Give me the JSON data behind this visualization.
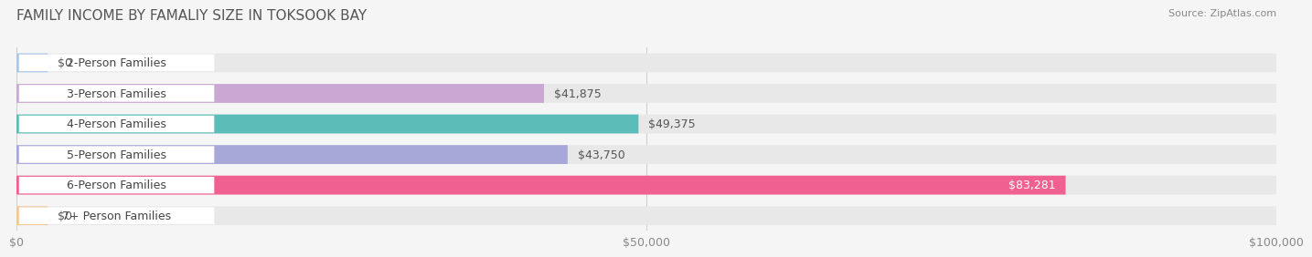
{
  "title": "FAMILY INCOME BY FAMALIY SIZE IN TOKSOOK BAY",
  "source": "Source: ZipAtlas.com",
  "categories": [
    "2-Person Families",
    "3-Person Families",
    "4-Person Families",
    "5-Person Families",
    "6-Person Families",
    "7+ Person Families"
  ],
  "values": [
    0,
    41875,
    49375,
    43750,
    83281,
    0
  ],
  "bar_colors": [
    "#a8c8e8",
    "#c9a8d4",
    "#5bbcb8",
    "#a8a8d8",
    "#f06090",
    "#f0c898"
  ],
  "value_labels": [
    "$0",
    "$41,875",
    "$49,375",
    "$43,750",
    "$83,281",
    "$0"
  ],
  "xlim": [
    0,
    100000
  ],
  "xticks": [
    0,
    50000,
    100000
  ],
  "xtick_labels": [
    "$0",
    "$50,000",
    "$100,000"
  ],
  "bg_color": "#f5f5f5",
  "bar_bg_color": "#e8e8e8",
  "title_fontsize": 11,
  "source_fontsize": 8,
  "label_fontsize": 9,
  "value_fontsize": 9,
  "tick_fontsize": 9
}
